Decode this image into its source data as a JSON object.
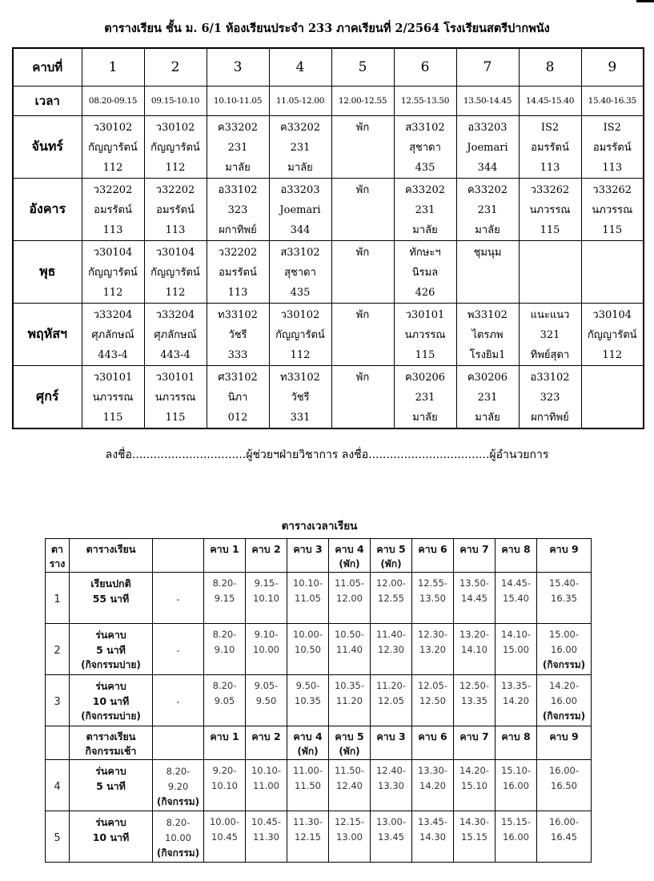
{
  "page": {
    "title": "ตารางเรียน ชั้น ม. 6/1 ห้องเรียนประจำ 233 ภาคเรียนที่ 2/2564 โรงเรียนสตรีปากพนัง",
    "signature_line": "ลงชื่อ................................ผู้ช่วยฯฝ่ายวิชาการ ลงชื่อ..................................ผู้อำนวยการ"
  },
  "timetable": {
    "corner_label": "คาบที่",
    "time_label": "เวลา",
    "periods": [
      "1",
      "2",
      "3",
      "4",
      "5",
      "6",
      "7",
      "8",
      "9"
    ],
    "times": [
      "08.20-09.15",
      "09.15-10.10",
      "10.10-11.05",
      "11.05-12.00",
      "12.00-12.55",
      "12.55-13.50",
      "13.50-14.45",
      "14.45-15.40",
      "15.40-16.35"
    ],
    "days": [
      {
        "name": "จันทร์",
        "cells": [
          [
            "ว30102",
            "กัญญารัตน์",
            "112"
          ],
          [
            "ว30102",
            "กัญญารัตน์",
            "112"
          ],
          [
            "ค33202",
            "231",
            "มาลัย"
          ],
          [
            "ค33202",
            "231",
            "มาลัย"
          ],
          [
            "พัก"
          ],
          [
            "ส33102",
            "สุชาดา",
            "435"
          ],
          [
            "อ33203",
            "Joemari",
            "344"
          ],
          [
            "IS2",
            "อมรรัตน์",
            "113"
          ],
          [
            "IS2",
            "อมรรัตน์",
            "113"
          ]
        ]
      },
      {
        "name": "อังคาร",
        "cells": [
          [
            "ว32202",
            "อมรรัตน์",
            "113"
          ],
          [
            "ว32202",
            "อมรรัตน์",
            "113"
          ],
          [
            "อ33102",
            "323",
            "ผกาทิพย์"
          ],
          [
            "อ33203",
            "Joemari",
            "344"
          ],
          [
            "พัก"
          ],
          [
            "ค33202",
            "231",
            "มาลัย"
          ],
          [
            "ค33202",
            "231",
            "มาลัย"
          ],
          [
            "ว33262",
            "นภวรรณ",
            "115"
          ],
          [
            "ว33262",
            "นภวรรณ",
            "115"
          ]
        ]
      },
      {
        "name": "พุธ",
        "cells": [
          [
            "ว30104",
            "กัญญารัตน์",
            "112"
          ],
          [
            "ว30104",
            "กัญญารัตน์",
            "112"
          ],
          [
            "ว32202",
            "อมรรัตน์",
            "113"
          ],
          [
            "ส33102",
            "สุชาดา",
            "435"
          ],
          [
            "พัก"
          ],
          [
            "ทักษะฯ",
            "นิรมล",
            "426"
          ],
          [
            "ชุมนุม"
          ],
          [],
          []
        ]
      },
      {
        "name": "พฤหัสฯ",
        "cells": [
          [
            "ว33204",
            "ศุภลักษณ์",
            "443-4"
          ],
          [
            "ว33204",
            "ศุภลักษณ์",
            "443-4"
          ],
          [
            "ท33102",
            "วัชรี",
            "333"
          ],
          [
            "ว30102",
            "กัญญารัตน์",
            "112"
          ],
          [
            "พัก"
          ],
          [
            "ว30101",
            "นภวรรณ",
            "115"
          ],
          [
            "พ33102",
            "ไตรภพ",
            "โรงยิม1"
          ],
          [
            "แนะแนว",
            "321",
            "ทิพย์สุดา"
          ],
          [
            "ว30104",
            "กัญญารัตน์",
            "112"
          ]
        ]
      },
      {
        "name": "ศุกร์",
        "cells": [
          [
            "ว30101",
            "นภวรรณ",
            "115"
          ],
          [
            "ว30101",
            "นภวรรณ",
            "115"
          ],
          [
            "ศ33102",
            "นิภา",
            "012"
          ],
          [
            "ท33102",
            "วัชรี",
            "331"
          ],
          [
            "พัก"
          ],
          [
            "ค30206",
            "231",
            "มาลัย"
          ],
          [
            "ค30206",
            "231",
            "มาลัย"
          ],
          [
            "อ33102",
            "323",
            "ผกาทิพย์"
          ],
          []
        ]
      }
    ]
  },
  "time_schedule": {
    "title": "ตารางเวลาเรียน",
    "rows": [
      {
        "type": "header",
        "c0": [
          "ตา",
          "ราง"
        ],
        "c1": [
          "ตารางเรียน"
        ],
        "c2": [],
        "cells": [
          [
            "คาบ 1"
          ],
          [
            "คาบ 2"
          ],
          [
            "คาบ 3"
          ],
          [
            "คาบ 4",
            "(พัก)"
          ],
          [
            "คาบ 5",
            "(พัก)"
          ],
          [
            "คาบ 6"
          ],
          [
            "คาบ 7"
          ],
          [
            "คาบ 8"
          ],
          [
            "คาบ 9"
          ]
        ]
      },
      {
        "type": "data",
        "c0": [
          "1"
        ],
        "c1": [
          "เรียนปกติ",
          "55 นาที"
        ],
        "c2": [
          "-"
        ],
        "cells": [
          [
            "8.20-",
            "9.15"
          ],
          [
            "9.15-",
            "10.10"
          ],
          [
            "10.10-",
            "11.05"
          ],
          [
            "11.05-",
            "12.00"
          ],
          [
            "12.00-",
            "12.55"
          ],
          [
            "12.55-",
            "13.50"
          ],
          [
            "13.50-",
            "14.45"
          ],
          [
            "14.45-",
            "15.40"
          ],
          [
            "15.40-",
            "16.35"
          ]
        ]
      },
      {
        "type": "data",
        "c0": [
          "2"
        ],
        "c1": [
          "ร่นคาบ",
          "5 นาที",
          "(กิจกรรมบ่าย)"
        ],
        "c2": [
          "-"
        ],
        "cells": [
          [
            "8.20-",
            "9.10"
          ],
          [
            "9.10-",
            "10.00"
          ],
          [
            "10.00-",
            "10.50"
          ],
          [
            "10.50-",
            "11.40"
          ],
          [
            "11.40-",
            "12.30"
          ],
          [
            "12.30-",
            "13.20"
          ],
          [
            "13.20-",
            "14.10"
          ],
          [
            "14.10-",
            "15.00"
          ],
          [
            "15.00-",
            "16.00",
            "(กิจกรรม)"
          ]
        ]
      },
      {
        "type": "data",
        "c0": [
          "3"
        ],
        "c1": [
          "ร่นคาบ",
          "10 นาที",
          "(กิจกรรมบ่าย)"
        ],
        "c2": [
          "-"
        ],
        "cells": [
          [
            "8.20-",
            "9.05"
          ],
          [
            "9.05-",
            "9.50"
          ],
          [
            "9.50-",
            "10.35"
          ],
          [
            "10.35-",
            "11.20"
          ],
          [
            "11.20-",
            "12.05"
          ],
          [
            "12.05-",
            "12.50"
          ],
          [
            "12.50-",
            "13.35"
          ],
          [
            "13.35-",
            "14.20"
          ],
          [
            "14.20-",
            "16.00",
            "(กิจกรรม)"
          ]
        ]
      },
      {
        "type": "header",
        "c0": [],
        "c1": [
          "ตารางเรียน",
          "กิจกรรมเช้า"
        ],
        "c2": [],
        "cells": [
          [
            "คาบ 1"
          ],
          [
            "คาบ 2"
          ],
          [
            "คาบ 4",
            "(พัก)"
          ],
          [
            "คาบ 5",
            "(พัก)"
          ],
          [
            "คาบ 3"
          ],
          [
            "คาบ 6"
          ],
          [
            "คาบ 7"
          ],
          [
            "คาบ 8"
          ],
          [
            "คาบ 9"
          ]
        ]
      },
      {
        "type": "data",
        "c0": [
          "4"
        ],
        "c1": [
          "ร่นคาบ",
          "5 นาที"
        ],
        "c2": [
          "8.20-",
          "9.20",
          "(กิจกรรม)"
        ],
        "cells": [
          [
            "9.20-",
            "10.10"
          ],
          [
            "10.10-",
            "11.00"
          ],
          [
            "11.00-",
            "11.50"
          ],
          [
            "11.50-",
            "12.40"
          ],
          [
            "12.40-",
            "13.30"
          ],
          [
            "13.30-",
            "14.20"
          ],
          [
            "14.20-",
            "15.10"
          ],
          [
            "15.10-",
            "16.00"
          ],
          [
            "16.00-",
            "16.50"
          ]
        ]
      },
      {
        "type": "data",
        "c0": [
          "5"
        ],
        "c1": [
          "ร่นคาบ",
          "10 นาที"
        ],
        "c2": [
          "8.20-",
          "10.00",
          "(กิจกรรม)"
        ],
        "cells": [
          [
            "10.00-",
            "10.45"
          ],
          [
            "10.45-",
            "11.30"
          ],
          [
            "11.30-",
            "12.15"
          ],
          [
            "12.15-",
            "13.00"
          ],
          [
            "13.00-",
            "13.45"
          ],
          [
            "13.45-",
            "14.30"
          ],
          [
            "14.30-",
            "15.15"
          ],
          [
            "15.15-",
            "16.00"
          ],
          [
            "16.00-",
            "16.45"
          ]
        ]
      }
    ]
  }
}
